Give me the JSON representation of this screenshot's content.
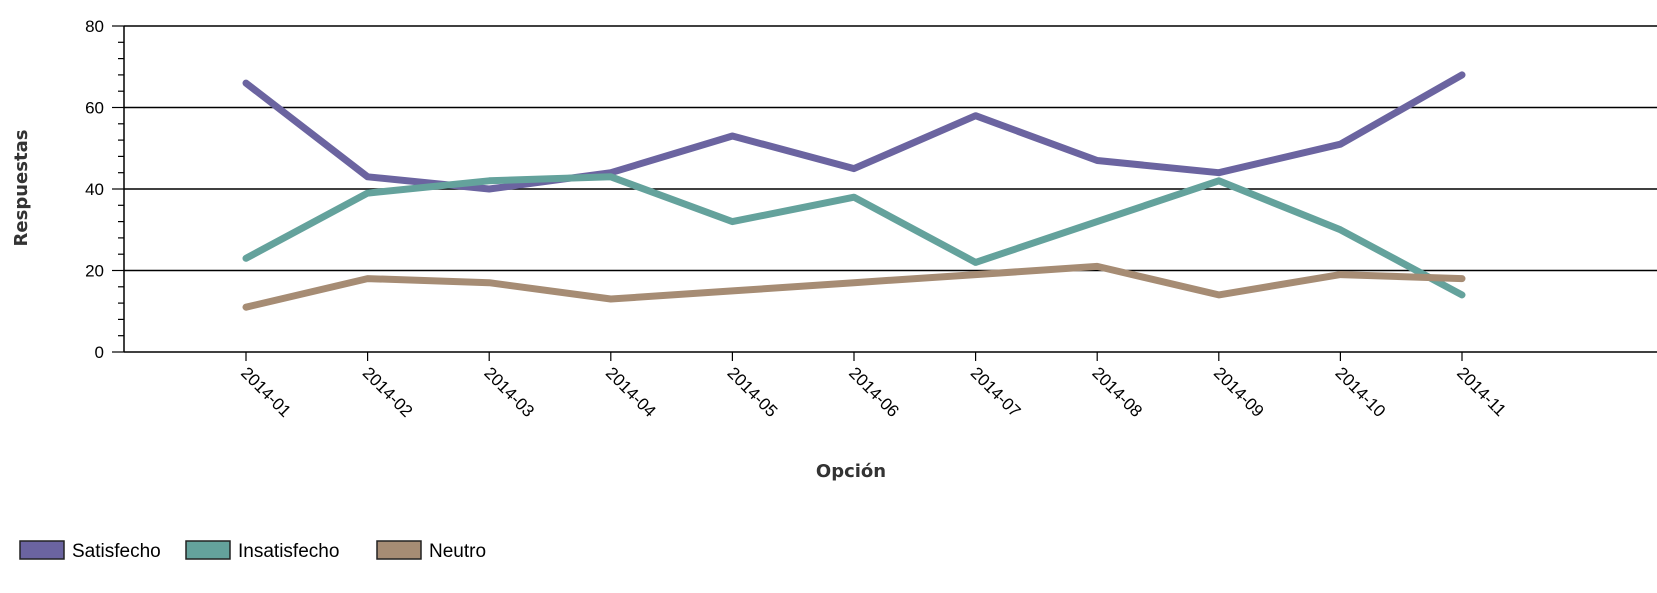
{
  "chart_data": {
    "type": "line",
    "title": "",
    "xlabel": "Opción",
    "ylabel": "Respuestas",
    "ylim": [
      0,
      80
    ],
    "yticks": [
      0,
      20,
      40,
      60,
      80
    ],
    "grid": true,
    "legend_position": "bottom-left",
    "categories": [
      "2014-01",
      "2014-02",
      "2014-03",
      "2014-04",
      "2014-05",
      "2014-06",
      "2014-07",
      "2014-08",
      "2014-09",
      "2014-10",
      "2014-11"
    ],
    "series": [
      {
        "name": "Satisfecho",
        "color": "#6B64A0",
        "values": [
          66,
          43,
          40,
          44,
          53,
          45,
          58,
          47,
          44,
          51,
          68
        ]
      },
      {
        "name": "Insatisfecho",
        "color": "#64A29C",
        "values": [
          23,
          39,
          42,
          43,
          32,
          38,
          22,
          32,
          42,
          30,
          14
        ]
      },
      {
        "name": "Neutro",
        "color": "#A68C74",
        "values": [
          11,
          18,
          17,
          13,
          15,
          17,
          19,
          21,
          14,
          19,
          18
        ]
      }
    ]
  }
}
